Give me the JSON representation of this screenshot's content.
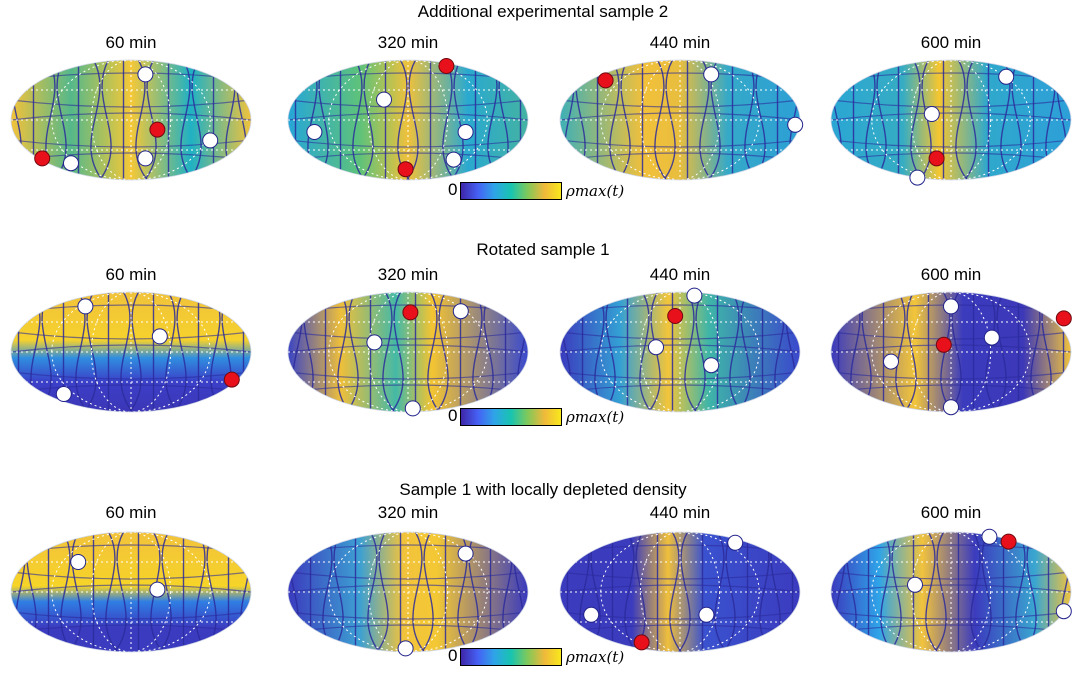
{
  "figure": {
    "colorbar": {
      "min_label": "0",
      "max_label": "ρmax(t)",
      "colormap": [
        "#3e26a8",
        "#4560f4",
        "#2fa4e8",
        "#17c4b0",
        "#80c95a",
        "#efb93b",
        "#f9e81c"
      ]
    },
    "rows": [
      {
        "title": "Additional experimental sample 2",
        "panels": [
          {
            "time": "60 min"
          },
          {
            "time": "320 min"
          },
          {
            "time": "440 min"
          },
          {
            "time": "600 min"
          }
        ]
      },
      {
        "title": "Rotated sample 1",
        "panels": [
          {
            "time": "60 min"
          },
          {
            "time": "320 min"
          },
          {
            "time": "440 min"
          },
          {
            "time": "600 min"
          }
        ]
      },
      {
        "title": "Sample 1 with locally depleted density",
        "panels": [
          {
            "time": "60 min"
          },
          {
            "time": "320 min"
          },
          {
            "time": "440 min"
          },
          {
            "time": "600 min"
          }
        ]
      }
    ],
    "marker_colors": {
      "defect_white": "#ffffff",
      "defect_red": "#e8101a",
      "streamline": "#2b2c9c",
      "grid": "#ffffff"
    }
  }
}
